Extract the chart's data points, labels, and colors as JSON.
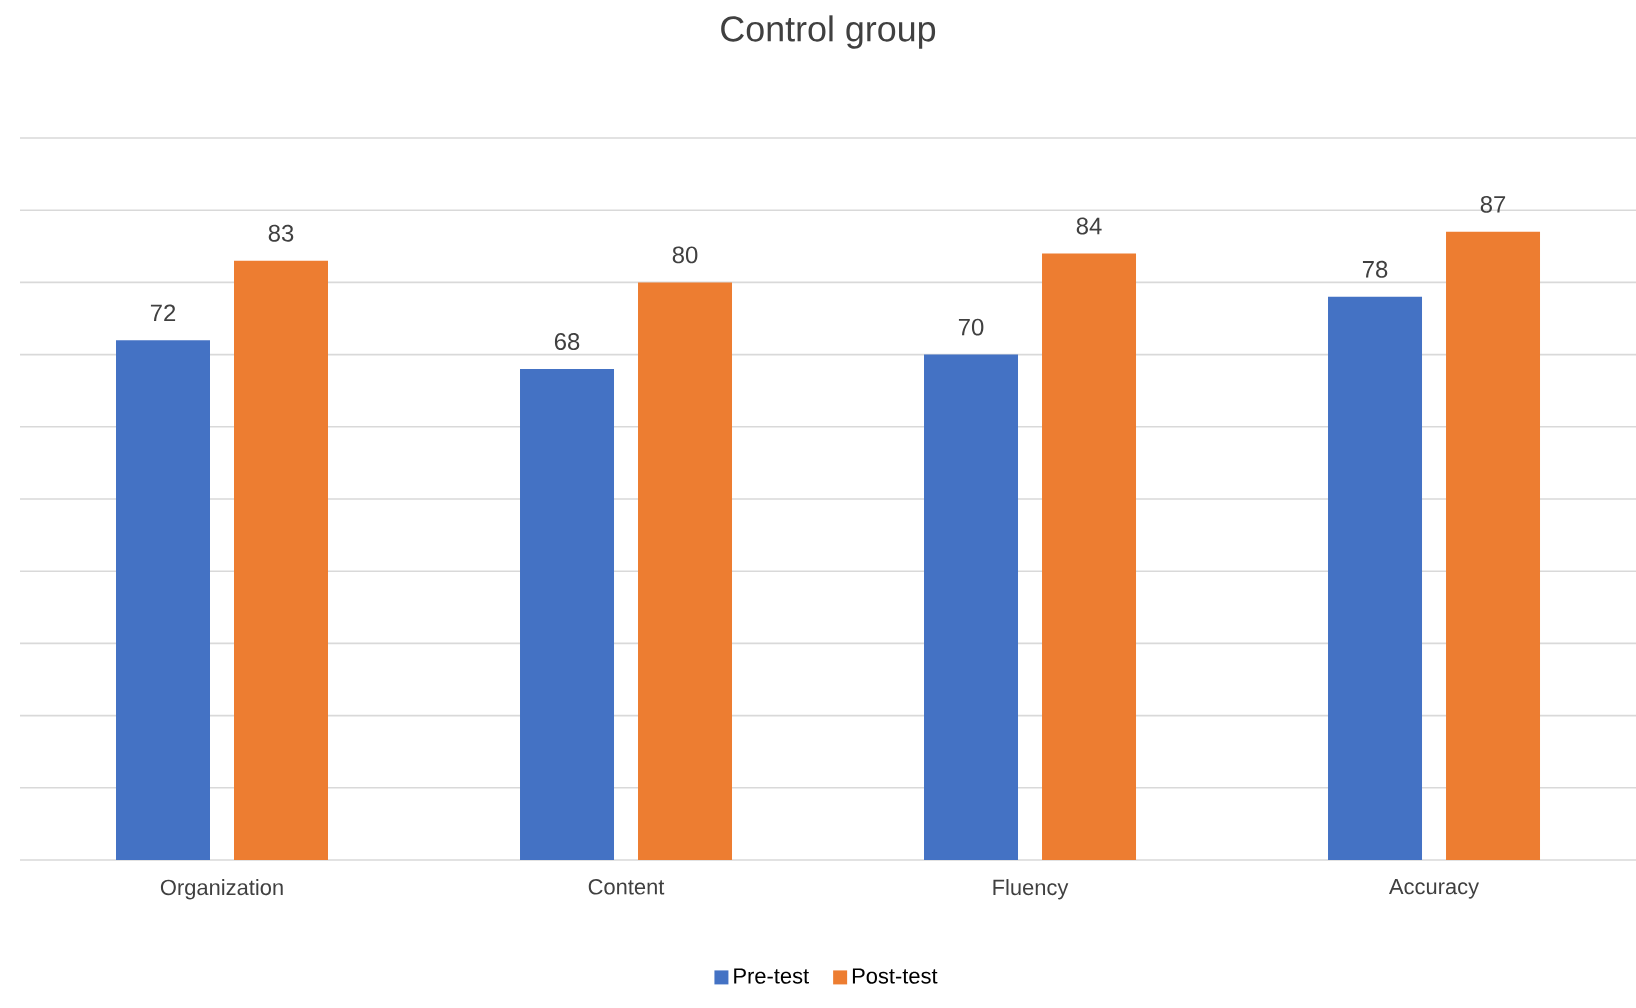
{
  "chart_data": {
    "type": "bar",
    "title": "Control group",
    "categories": [
      "Organization",
      "Content",
      "Fluency",
      "Accuracy"
    ],
    "series": [
      {
        "name": "Pre-test",
        "color": "#4472c4",
        "values": [
          72,
          68,
          70,
          78
        ]
      },
      {
        "name": "Post-test",
        "color": "#ed7d31",
        "values": [
          83,
          80,
          84,
          87
        ]
      }
    ],
    "ylim": [
      0,
      100
    ],
    "yticks": [
      {
        "value": 0,
        "label": null
      },
      {
        "value": 10,
        "label": null
      },
      {
        "value": 20,
        "label": null
      },
      {
        "value": 30,
        "label": null
      },
      {
        "value": 40,
        "label": null
      },
      {
        "value": 50,
        "label": null
      },
      {
        "value": 60,
        "label": null
      },
      {
        "value": 70,
        "label": null
      },
      {
        "value": 80,
        "label": null
      },
      {
        "value": 90,
        "label": null
      },
      {
        "value": 100,
        "label": null
      }
    ],
    "tick_labels": "x",
    "grid": "y",
    "legend": "bottom",
    "data_labels": true
  }
}
